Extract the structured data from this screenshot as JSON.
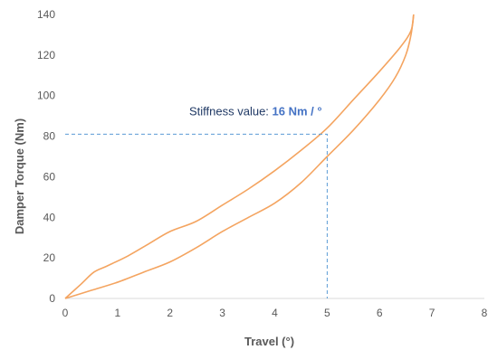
{
  "chart_data": {
    "type": "line",
    "title": "",
    "xlabel": "Travel (°)",
    "ylabel": "Damper Torque (Nm)",
    "xlim": [
      0,
      8
    ],
    "ylim": [
      0,
      140
    ],
    "x_ticks": [
      "0",
      "1",
      "2",
      "3",
      "4",
      "5",
      "6",
      "7",
      "8"
    ],
    "y_ticks": [
      "0",
      "20",
      "40",
      "60",
      "80",
      "100",
      "120",
      "140"
    ],
    "grid": false,
    "legend": "none",
    "colors": {
      "series": "#f4a460",
      "guide": "#5b9bd5",
      "annotation_text": "#1f3864",
      "annotation_value": "#4472c4",
      "axis": "#d9d9d9",
      "text": "#595959"
    },
    "series": [
      {
        "values_x": [
          0,
          0.3,
          0.55,
          0.8,
          1.2,
          1.6,
          2.0,
          2.5,
          3.0,
          3.5,
          4.0,
          4.5,
          5.0,
          5.5,
          6.0,
          6.4,
          6.6,
          6.65
        ],
        "values_y": [
          0,
          7,
          13,
          16,
          21,
          27,
          33,
          38,
          46,
          54,
          63,
          73,
          84,
          98,
          112,
          124,
          132,
          140
        ]
      },
      {
        "values_x": [
          0,
          0.5,
          1.0,
          1.5,
          2.0,
          2.5,
          3.0,
          3.5,
          4.0,
          4.5,
          5.0,
          5.5,
          6.0,
          6.3,
          6.5,
          6.6,
          6.65
        ],
        "values_y": [
          0,
          4,
          8,
          13,
          18,
          25,
          33,
          40,
          47,
          57,
          70,
          83,
          98,
          109,
          120,
          130,
          140
        ]
      }
    ],
    "annotation": {
      "prefix": "Stiffness value: ",
      "value": "16 Nm / °",
      "point": {
        "x": 5.0,
        "y": 81
      }
    }
  }
}
